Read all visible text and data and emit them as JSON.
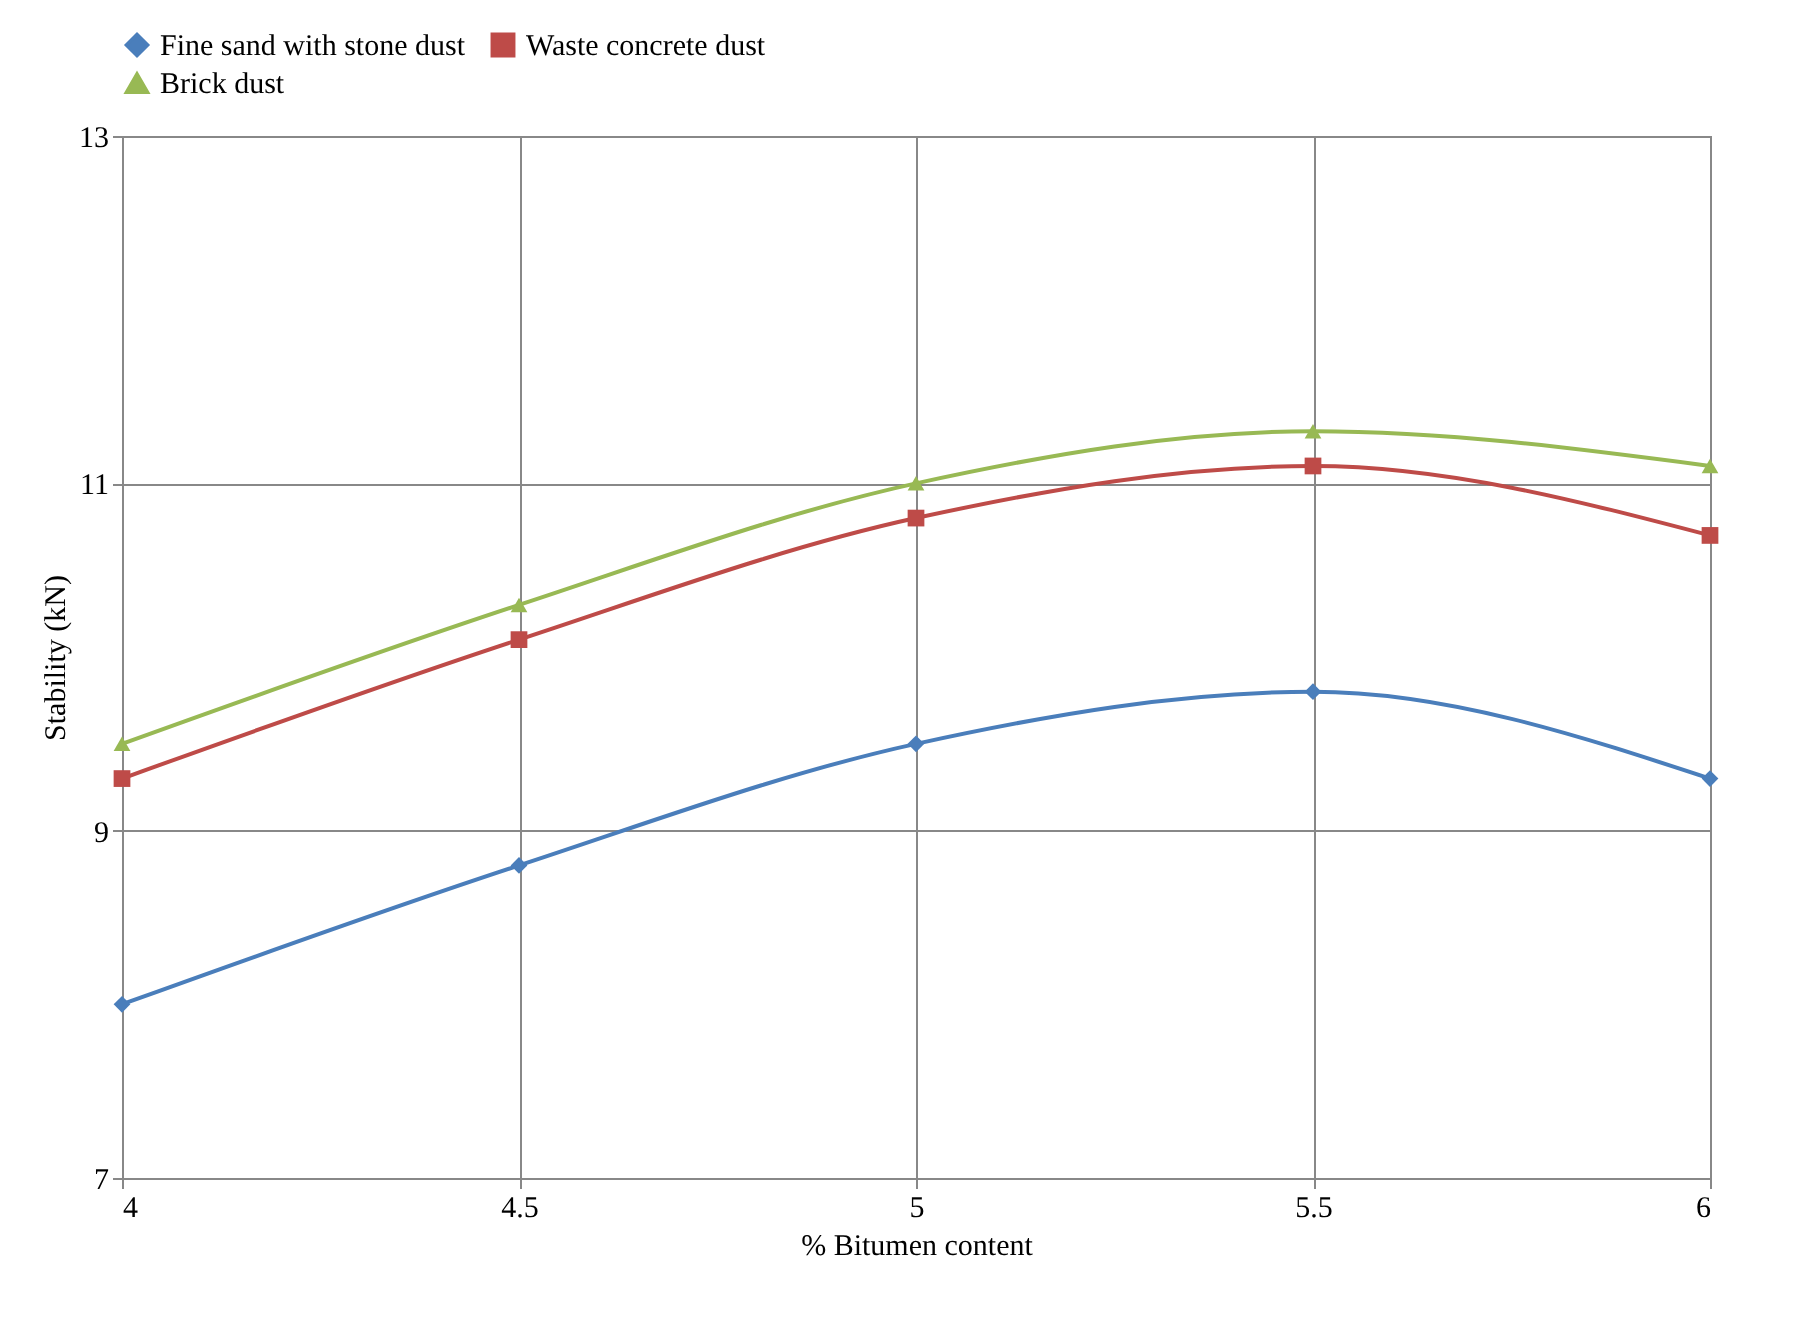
{
  "chart_data": {
    "type": "line",
    "xlabel": "% Bitumen content",
    "ylabel": "Stability (kN)",
    "x": [
      4,
      4.5,
      5,
      5.5,
      6
    ],
    "series": [
      {
        "name": "Fine sand with stone dust",
        "color": "#4a7ebb",
        "marker": "diamond",
        "values": [
          8.0,
          8.8,
          9.5,
          9.8,
          9.3
        ]
      },
      {
        "name": "Waste concrete dust",
        "color": "#be4b48",
        "marker": "square",
        "values": [
          9.3,
          10.1,
          10.8,
          11.1,
          10.7
        ]
      },
      {
        "name": "Brick dust",
        "color": "#98b954",
        "marker": "triangle",
        "values": [
          9.5,
          10.3,
          11.0,
          11.3,
          11.1
        ]
      }
    ],
    "xlim": [
      4,
      6
    ],
    "xticks": [
      4,
      4.5,
      5,
      5.5,
      6
    ],
    "ylim": [
      7,
      13
    ],
    "yticks": [
      7,
      9,
      11,
      13
    ],
    "grid": true,
    "legend": "top",
    "line_style": "solid"
  }
}
